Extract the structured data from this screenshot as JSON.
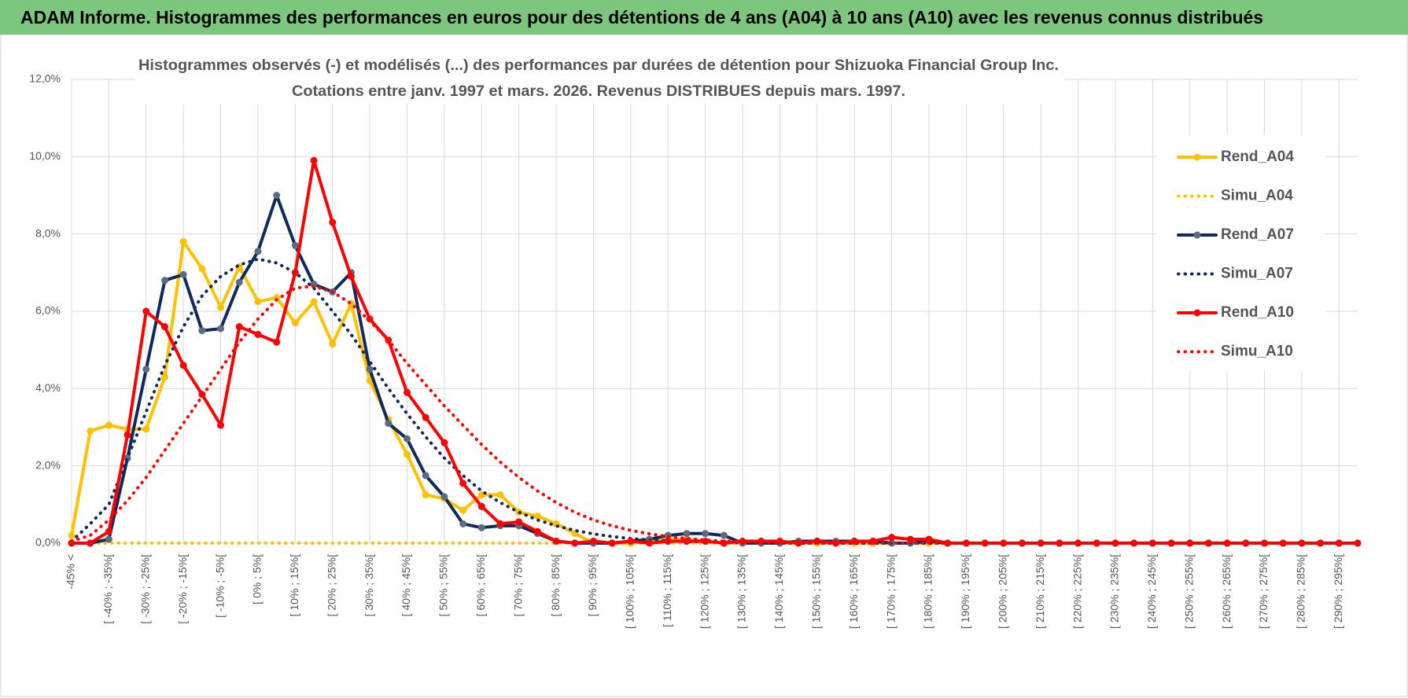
{
  "header": {
    "title": "ADAM Informe. Histogrammes des performances en euros pour des détentions de 4 ans (A04) à 10 ans (A10) avec les revenus connus distribués"
  },
  "chart_data": {
    "type": "line",
    "title": "Histogrammes observés (-) et modélisés (...) des performances par durées de détention pour Shizuoka Financial Group Inc.",
    "subtitle": "Cotations entre janv. 1997 et mars. 2026.  Revenus DISTRIBUES depuis mars. 1997.",
    "categories": [
      "-45% <",
      null,
      "[ -40% ; -35%[",
      null,
      "[ -30% ; -25%[",
      null,
      "[ -20% ; -15%[",
      null,
      "[ -10% ; -5%[",
      null,
      "[ 0% ; 5%[",
      null,
      "[ 10% ; 15%[",
      null,
      "[ 20% ; 25%[",
      null,
      "[ 30% ; 35%[",
      null,
      "[ 40% ; 45%[",
      null,
      "[ 50% ; 55%[",
      null,
      "[ 60% ; 65%[",
      null,
      "[ 70% ; 75%[",
      null,
      "[ 80% ; 85%[",
      null,
      "[ 90% ; 95%[",
      null,
      "[ 100% ; 105%[",
      null,
      "[ 110% ; 115%[",
      null,
      "[ 120% ; 125%[",
      null,
      "[ 130% ; 135%[",
      null,
      "[ 140% ; 145%[",
      null,
      "[ 150% ; 155%[",
      null,
      "[ 160% ; 165%[",
      null,
      "[ 170% ; 175%[",
      null,
      "[ 180% ; 185%[",
      null,
      "[ 190% ; 195%[",
      null,
      "[ 200% ; 205%[",
      null,
      "[ 210% ; 215%[",
      null,
      "[ 220% ; 225%[",
      null,
      "[ 230% ; 235%[",
      null,
      "[ 240% ; 245%[",
      null,
      "[ 250% ; 255%[",
      null,
      "[ 260% ; 265%[",
      null,
      "[ 270% ; 275%[",
      null,
      "[ 280% ; 285%[",
      null,
      "[ 290% ; 295%[",
      null
    ],
    "ylim": [
      0,
      12
    ],
    "yticks": [
      {
        "value": 0,
        "label": "0,0%"
      },
      {
        "value": 2,
        "label": "2,0%"
      },
      {
        "value": 4,
        "label": "4,0%"
      },
      {
        "value": 6,
        "label": "6,0%"
      },
      {
        "value": 8,
        "label": "8,0%"
      },
      {
        "value": 10,
        "label": "10,0%"
      },
      {
        "value": 12,
        "label": "12,0%"
      }
    ],
    "grid": true,
    "legend": "right",
    "series": [
      {
        "name": "Rend_A04",
        "color": "#ffc000",
        "style": "solid",
        "markers": true,
        "values": [
          0.2,
          2.9,
          3.05,
          2.95,
          2.95,
          4.3,
          7.8,
          7.1,
          6.1,
          7.15,
          6.25,
          6.35,
          5.7,
          6.25,
          5.15,
          6.2,
          4.2,
          3.2,
          2.3,
          1.25,
          1.15,
          0.85,
          1.25,
          1.25,
          0.8,
          0.7,
          0.5,
          0.25,
          0,
          0,
          0,
          0.05,
          0.1,
          0.1,
          0.05,
          0,
          0,
          0,
          0,
          0,
          0,
          0,
          0,
          0,
          0,
          0,
          0,
          0,
          0,
          0,
          0,
          0,
          0,
          0,
          0,
          0,
          0,
          0,
          0,
          0,
          0,
          0,
          0,
          0,
          0,
          0,
          0,
          0,
          0,
          0
        ]
      },
      {
        "name": "Simu_A04",
        "color": "#ffc000",
        "style": "dotted",
        "markers": false,
        "values": [
          0,
          0,
          0,
          0,
          0,
          0,
          0,
          0,
          0,
          0,
          0,
          0,
          0,
          0,
          0,
          0,
          0,
          0,
          0,
          0,
          0,
          0,
          0,
          0,
          0,
          0,
          0,
          0,
          0,
          0,
          0,
          0,
          0,
          0,
          0,
          0,
          0,
          0,
          0,
          0,
          0,
          0,
          0,
          0,
          0,
          0,
          0,
          0,
          0,
          0,
          0,
          0,
          0,
          0,
          0,
          0,
          0,
          0,
          0,
          0,
          0,
          0,
          0,
          0,
          0,
          0,
          0,
          0,
          0,
          0
        ]
      },
      {
        "name": "Rend_A07",
        "color": "#0f2a5c",
        "style": "solid",
        "markers": true,
        "values": [
          0,
          0,
          0.1,
          2.2,
          4.5,
          6.8,
          6.95,
          5.5,
          5.55,
          6.75,
          7.55,
          9.0,
          7.7,
          6.7,
          6.5,
          7.0,
          4.5,
          3.1,
          2.7,
          1.75,
          1.2,
          0.5,
          0.4,
          0.45,
          0.45,
          0.25,
          0.05,
          0,
          0,
          0,
          0.05,
          0.1,
          0.2,
          0.25,
          0.25,
          0.2,
          0,
          0,
          0,
          0.05,
          0.05,
          0.05,
          0.05,
          0.05,
          0,
          0,
          0.05,
          0,
          0,
          0,
          0,
          0,
          0,
          0,
          0,
          0,
          0,
          0,
          0,
          0,
          0,
          0,
          0,
          0,
          0,
          0,
          0,
          0,
          0,
          0
        ]
      },
      {
        "name": "Simu_A07",
        "color": "#0f2a5c",
        "style": "dotted",
        "markers": false,
        "values": [
          0.05,
          0.5,
          1.0,
          2.2,
          3.4,
          4.6,
          5.6,
          6.4,
          6.9,
          7.2,
          7.35,
          7.25,
          7.0,
          6.6,
          6.0,
          5.4,
          4.7,
          4.0,
          3.35,
          2.75,
          2.2,
          1.75,
          1.35,
          1.05,
          0.8,
          0.6,
          0.45,
          0.33,
          0.24,
          0.17,
          0.12,
          0.08,
          0.06,
          0.04,
          0.03,
          0.02,
          0.01,
          0.01,
          0,
          0,
          0,
          0,
          0,
          0,
          0,
          0,
          0,
          0,
          0,
          0,
          0,
          0,
          0,
          0,
          0,
          0,
          0,
          0,
          0,
          0,
          0,
          0,
          0,
          0,
          0,
          0,
          0,
          0,
          0,
          0
        ]
      },
      {
        "name": "Rend_A10",
        "color": "#ff0000",
        "style": "solid",
        "markers": true,
        "values": [
          0,
          0,
          0.3,
          2.8,
          6.0,
          5.6,
          4.6,
          3.85,
          3.05,
          5.6,
          5.4,
          5.2,
          7.0,
          9.9,
          8.3,
          6.9,
          5.8,
          5.25,
          3.9,
          3.25,
          2.6,
          1.55,
          0.95,
          0.5,
          0.55,
          0.3,
          0.05,
          0,
          0.05,
          0,
          0.05,
          0,
          0.05,
          0.05,
          0.05,
          0,
          0.05,
          0.05,
          0.05,
          0,
          0.05,
          0,
          0.05,
          0.05,
          0.15,
          0.1,
          0.1,
          0,
          0,
          0,
          0,
          0,
          0,
          0,
          0,
          0,
          0,
          0,
          0,
          0,
          0,
          0,
          0,
          0,
          0,
          0,
          0,
          0,
          0,
          0
        ]
      },
      {
        "name": "Simu_A10",
        "color": "#ff0000",
        "style": "dotted",
        "markers": false,
        "values": [
          0.05,
          0.2,
          0.6,
          1.1,
          1.7,
          2.4,
          3.1,
          3.8,
          4.5,
          5.2,
          5.8,
          6.3,
          6.6,
          6.65,
          6.5,
          6.2,
          5.75,
          5.25,
          4.65,
          4.1,
          3.55,
          3.05,
          2.55,
          2.1,
          1.7,
          1.35,
          1.05,
          0.8,
          0.6,
          0.45,
          0.33,
          0.24,
          0.17,
          0.12,
          0.08,
          0.05,
          0.04,
          0.02,
          0.01,
          0,
          0,
          0,
          0,
          0,
          0,
          0,
          0,
          0,
          0,
          0,
          0,
          0,
          0,
          0,
          0,
          0,
          0,
          0,
          0,
          0,
          0,
          0,
          0,
          0,
          0,
          0,
          0,
          0,
          0,
          0
        ]
      }
    ]
  }
}
